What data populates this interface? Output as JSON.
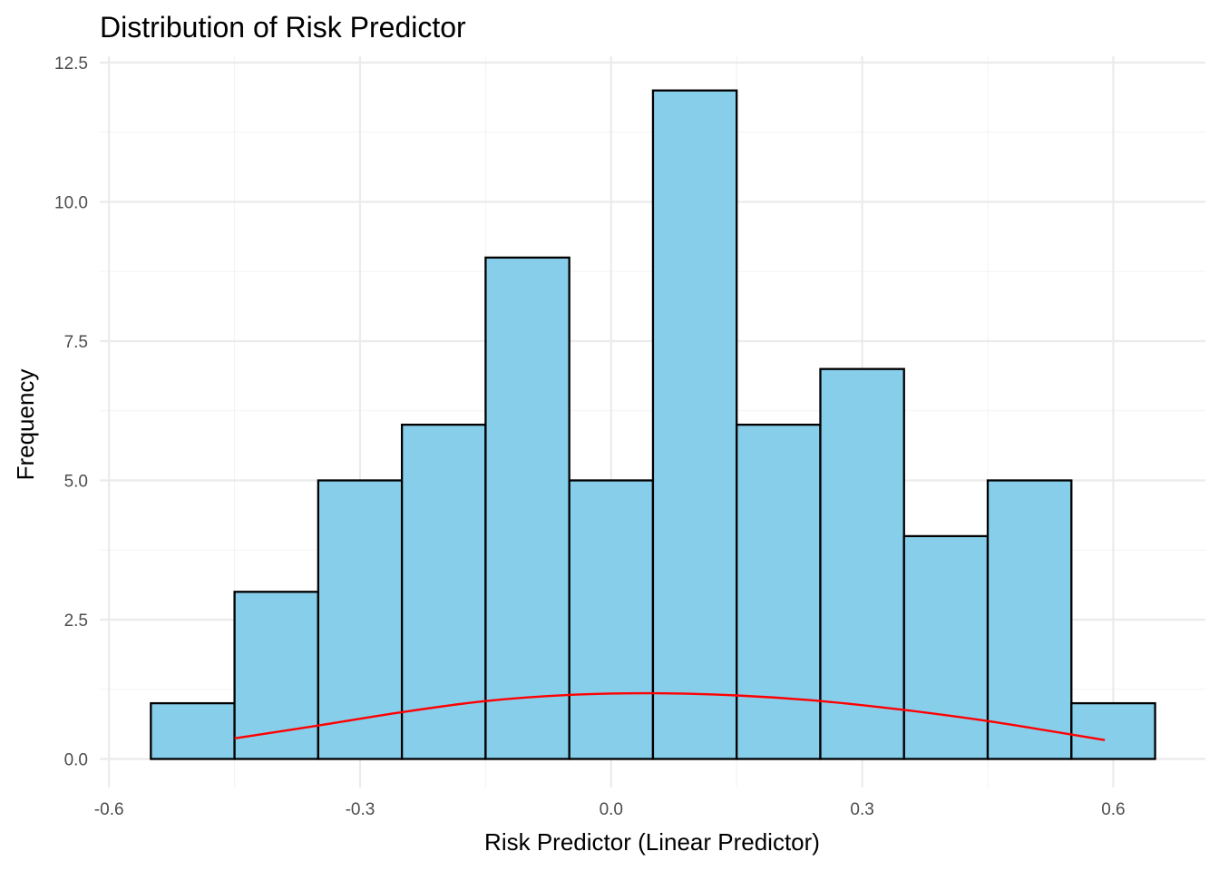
{
  "chart_data": {
    "type": "bar",
    "title": "Distribution of Risk Predictor",
    "xlabel": "Risk Predictor (Linear Predictor)",
    "ylabel": "Frequency",
    "xlim": [
      -0.6,
      0.65
    ],
    "ylim": [
      0,
      12.5
    ],
    "x_ticks": [
      "-0.6",
      "-0.3",
      "0.0",
      "0.3",
      "0.6"
    ],
    "y_ticks": [
      "0.0",
      "2.5",
      "5.0",
      "7.5",
      "10.0",
      "12.5"
    ],
    "bins": [
      {
        "x0": -0.55,
        "x1": -0.45,
        "count": 1
      },
      {
        "x0": -0.45,
        "x1": -0.35,
        "count": 3
      },
      {
        "x0": -0.35,
        "x1": -0.25,
        "count": 5
      },
      {
        "x0": -0.25,
        "x1": -0.15,
        "count": 6
      },
      {
        "x0": -0.15,
        "x1": -0.05,
        "count": 9
      },
      {
        "x0": -0.05,
        "x1": 0.05,
        "count": 5
      },
      {
        "x0": 0.05,
        "x1": 0.15,
        "count": 12
      },
      {
        "x0": 0.15,
        "x1": 0.25,
        "count": 6
      },
      {
        "x0": 0.25,
        "x1": 0.35,
        "count": 7
      },
      {
        "x0": 0.35,
        "x1": 0.45,
        "count": 4
      },
      {
        "x0": 0.45,
        "x1": 0.55,
        "count": 5
      },
      {
        "x0": 0.55,
        "x1": 0.65,
        "count": 1
      }
    ],
    "density_curve": {
      "x": [
        -0.45,
        -0.35,
        -0.25,
        -0.15,
        -0.05,
        0.05,
        0.15,
        0.25,
        0.35,
        0.45,
        0.59
      ],
      "y": [
        0.37,
        0.6,
        0.84,
        1.04,
        1.15,
        1.18,
        1.14,
        1.04,
        0.88,
        0.68,
        0.34
      ]
    },
    "colors": {
      "bar_fill": "#87ceeb",
      "bar_stroke": "#000000",
      "curve": "#ff0000"
    },
    "grid": true,
    "legend": "none"
  }
}
